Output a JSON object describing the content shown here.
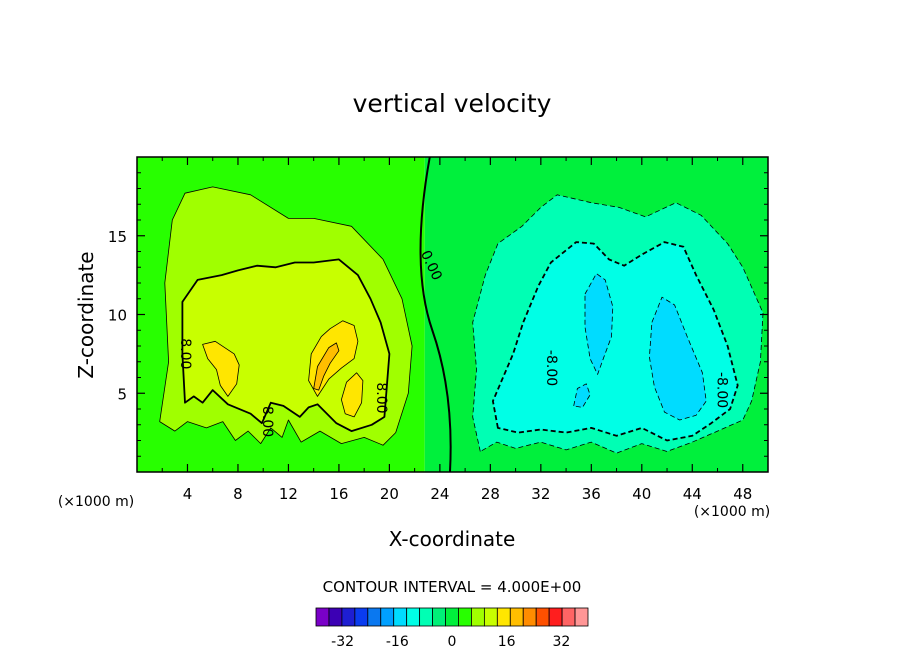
{
  "chart_data": {
    "type": "heatmap",
    "title": "vertical velocity",
    "xlabel": "X-coordinate",
    "ylabel": "Z-coordinate",
    "x_unit": "(×1000 m)",
    "y_unit": "(×1000 m)",
    "xlim": [
      0,
      50
    ],
    "ylim": [
      0,
      20
    ],
    "x_ticks": [
      4,
      8,
      12,
      16,
      20,
      24,
      28,
      32,
      36,
      40,
      44,
      48
    ],
    "y_ticks": [
      5,
      10,
      15
    ],
    "contour_interval_text": "CONTOUR INTERVAL = 4.000E+00",
    "contour_labels": [
      {
        "text": "8.00",
        "x": 3.5,
        "z": 7.5,
        "angle": 90
      },
      {
        "text": "8.00",
        "x": 10.0,
        "z": 3.2,
        "angle": 90
      },
      {
        "text": "8.00",
        "x": 19.0,
        "z": 4.7,
        "angle": 90
      },
      {
        "text": "0.00",
        "x": 23.0,
        "z": 13.0,
        "angle": 65
      },
      {
        "text": "-8.00",
        "x": 32.5,
        "z": 6.6,
        "angle": 90
      },
      {
        "text": "-8.00",
        "x": 46.0,
        "z": 5.2,
        "angle": 90
      }
    ],
    "colorbar": {
      "levels": [
        -36,
        -32,
        -28,
        -24,
        -20,
        -16,
        -12,
        -8,
        -4,
        0,
        4,
        8,
        12,
        16,
        20,
        24,
        28,
        32,
        36
      ],
      "tick_labels": [
        "-32",
        "-16",
        "0",
        "16",
        "32"
      ],
      "tick_values": [
        -32,
        -16,
        0,
        16,
        32
      ],
      "colors": [
        "#7a00c8",
        "#3c00b4",
        "#1e1ed2",
        "#0a3cf0",
        "#0a78f0",
        "#00a0ff",
        "#00dcff",
        "#00ffe6",
        "#00ffb4",
        "#00f078",
        "#00f03c",
        "#28ff00",
        "#a0ff00",
        "#c8ff00",
        "#ffe600",
        "#ffbe00",
        "#ff8c00",
        "#ff5000",
        "#ff1e1e",
        "#ff6464",
        "#ff9696"
      ]
    },
    "regions": [
      {
        "level": 4,
        "color": "#a0ff00",
        "polygon": [
          [
            1.8,
            3.2
          ],
          [
            2.5,
            7
          ],
          [
            2.2,
            12
          ],
          [
            2.8,
            16
          ],
          [
            3.8,
            17.7
          ],
          [
            6,
            18.1
          ],
          [
            9,
            17.6
          ],
          [
            12,
            16.1
          ],
          [
            14,
            16.1
          ],
          [
            17,
            15.6
          ],
          [
            19.5,
            13.5
          ],
          [
            21,
            11
          ],
          [
            21.8,
            8
          ],
          [
            21.5,
            5
          ],
          [
            20.5,
            2.5
          ],
          [
            19.5,
            1.7
          ],
          [
            18,
            2.2
          ],
          [
            16.2,
            1.8
          ],
          [
            14.5,
            2.6
          ],
          [
            13,
            1.9
          ],
          [
            12,
            3.3
          ],
          [
            11.5,
            2.2
          ],
          [
            10.6,
            2.8
          ],
          [
            9.8,
            1.8
          ],
          [
            8.8,
            2.6
          ],
          [
            7.8,
            2
          ],
          [
            6.8,
            3.2
          ],
          [
            5.5,
            2.8
          ],
          [
            4,
            3.2
          ],
          [
            3,
            2.6
          ]
        ]
      },
      {
        "level": 8,
        "color": "#c8ff00",
        "polygon": [
          [
            3.8,
            4.4
          ],
          [
            3.6,
            7.5
          ],
          [
            3.6,
            10.8
          ],
          [
            4.8,
            12.2
          ],
          [
            6.7,
            12.5
          ],
          [
            8,
            12.8
          ],
          [
            9.5,
            13.1
          ],
          [
            11,
            13
          ],
          [
            12.5,
            13.3
          ],
          [
            14,
            13.3
          ],
          [
            16,
            13.5
          ],
          [
            17.5,
            12.5
          ],
          [
            18.5,
            11
          ],
          [
            19.3,
            9.5
          ],
          [
            20,
            7.5
          ],
          [
            19.8,
            5.5
          ],
          [
            19.6,
            3.5
          ],
          [
            18.6,
            3
          ],
          [
            17,
            2.6
          ],
          [
            15.8,
            3.1
          ],
          [
            14.3,
            4.3
          ],
          [
            13.6,
            4.1
          ],
          [
            12.9,
            3.5
          ],
          [
            11.6,
            4.2
          ],
          [
            10.6,
            4.4
          ],
          [
            9.9,
            3.1
          ],
          [
            9,
            3.7
          ],
          [
            7.2,
            4.3
          ],
          [
            6,
            5.2
          ],
          [
            5.2,
            4.4
          ],
          [
            4.5,
            4.8
          ]
        ]
      },
      {
        "level": 12,
        "color": "#ffe600",
        "polygon": [
          [
            13.6,
            5.8
          ],
          [
            13.8,
            7.5
          ],
          [
            14.6,
            8.6
          ],
          [
            15.3,
            9.1
          ],
          [
            16.3,
            9.6
          ],
          [
            17.2,
            9.3
          ],
          [
            17.5,
            8.3
          ],
          [
            17.2,
            7.2
          ],
          [
            16.2,
            6.6
          ],
          [
            15.2,
            5.9
          ],
          [
            14.3,
            4.8
          ]
        ]
      },
      {
        "level": 12,
        "color": "#ffe600",
        "polygon": [
          [
            5.2,
            8.1
          ],
          [
            6.2,
            8.3
          ],
          [
            7.7,
            7.5
          ],
          [
            8.1,
            6.8
          ],
          [
            7.9,
            5.6
          ],
          [
            7.2,
            4.8
          ],
          [
            6.6,
            5.5
          ],
          [
            6.3,
            6.5
          ],
          [
            5.6,
            7.2
          ]
        ]
      },
      {
        "level": 12,
        "color": "#ffe600",
        "polygon": [
          [
            16.2,
            4.6
          ],
          [
            16.6,
            5.7
          ],
          [
            17.4,
            6.3
          ],
          [
            17.9,
            5.8
          ],
          [
            17.8,
            4.4
          ],
          [
            17.2,
            3.5
          ],
          [
            16.5,
            3.7
          ]
        ]
      },
      {
        "level": 16,
        "color": "#ffbe00",
        "polygon": [
          [
            14,
            5.3
          ],
          [
            14.3,
            6.7
          ],
          [
            15.2,
            7.9
          ],
          [
            15.8,
            8.2
          ],
          [
            16,
            7.7
          ],
          [
            15.3,
            6.9
          ],
          [
            14.8,
            6.1
          ],
          [
            14.4,
            5.2
          ]
        ]
      },
      {
        "level": -4,
        "color": "#00ffb4",
        "polygon": [
          [
            27.2,
            1.3
          ],
          [
            26.6,
            3.5
          ],
          [
            26.9,
            6.5
          ],
          [
            26.6,
            9.5
          ],
          [
            27.6,
            12.5
          ],
          [
            28.6,
            14.5
          ],
          [
            30.5,
            15.6
          ],
          [
            32,
            16.8
          ],
          [
            33.3,
            17.6
          ],
          [
            36,
            17.1
          ],
          [
            38.2,
            16.8
          ],
          [
            40.3,
            16.2
          ],
          [
            42.7,
            17.1
          ],
          [
            44.7,
            16.3
          ],
          [
            46.8,
            14.5
          ],
          [
            48,
            13
          ],
          [
            49.6,
            10.1
          ],
          [
            49.4,
            7
          ],
          [
            48.7,
            4.5
          ],
          [
            48,
            3.3
          ],
          [
            46,
            2.6
          ],
          [
            44,
            1.9
          ],
          [
            42,
            1.3
          ],
          [
            40,
            1.8
          ],
          [
            38,
            1.2
          ],
          [
            36,
            1.9
          ],
          [
            34,
            1.4
          ],
          [
            32,
            1.9
          ],
          [
            30,
            1.5
          ],
          [
            28.5,
            1.9
          ]
        ]
      },
      {
        "level": -8,
        "color": "#00ffe6",
        "polygon": [
          [
            28.6,
            2.8
          ],
          [
            28.2,
            4.5
          ],
          [
            29,
            6
          ],
          [
            29.8,
            7.5
          ],
          [
            30.6,
            9.5
          ],
          [
            31.8,
            11.8
          ],
          [
            32.8,
            13.3
          ],
          [
            34.8,
            14.6
          ],
          [
            36.2,
            14.5
          ],
          [
            37.4,
            13.5
          ],
          [
            38.6,
            13.1
          ],
          [
            40,
            13.8
          ],
          [
            41.8,
            14.6
          ],
          [
            43.3,
            14.3
          ],
          [
            44.3,
            12.5
          ],
          [
            45.7,
            10.3
          ],
          [
            46.8,
            8
          ],
          [
            47.6,
            5.5
          ],
          [
            47,
            4
          ],
          [
            45.5,
            3.1
          ],
          [
            44,
            2.3
          ],
          [
            42,
            2
          ],
          [
            40,
            2.8
          ],
          [
            38,
            2.3
          ],
          [
            36,
            2.8
          ],
          [
            34,
            2.5
          ],
          [
            32,
            2.7
          ],
          [
            30.2,
            2.5
          ]
        ]
      },
      {
        "level": -12,
        "color": "#00dcff",
        "polygon": [
          [
            35.5,
            11.3
          ],
          [
            36.4,
            12.6
          ],
          [
            37.1,
            12.2
          ],
          [
            37.7,
            10.5
          ],
          [
            37.6,
            8.6
          ],
          [
            37,
            7.3
          ],
          [
            36.5,
            6.2
          ],
          [
            35.9,
            7.2
          ],
          [
            35.5,
            9.2
          ]
        ]
      },
      {
        "level": -12,
        "color": "#00dcff",
        "polygon": [
          [
            40.8,
            9.5
          ],
          [
            41.6,
            11.1
          ],
          [
            42.6,
            10.6
          ],
          [
            43.6,
            8.6
          ],
          [
            44.8,
            6.3
          ],
          [
            45.1,
            4.5
          ],
          [
            44.3,
            3.6
          ],
          [
            43,
            3.3
          ],
          [
            41.8,
            3.8
          ],
          [
            41,
            5.4
          ],
          [
            40.6,
            7.3
          ]
        ]
      },
      {
        "level": -12,
        "color": "#00dcff",
        "polygon": [
          [
            34.6,
            4.2
          ],
          [
            34.9,
            5.3
          ],
          [
            35.6,
            5.6
          ],
          [
            35.9,
            4.9
          ],
          [
            35.3,
            4.1
          ]
        ]
      }
    ]
  }
}
